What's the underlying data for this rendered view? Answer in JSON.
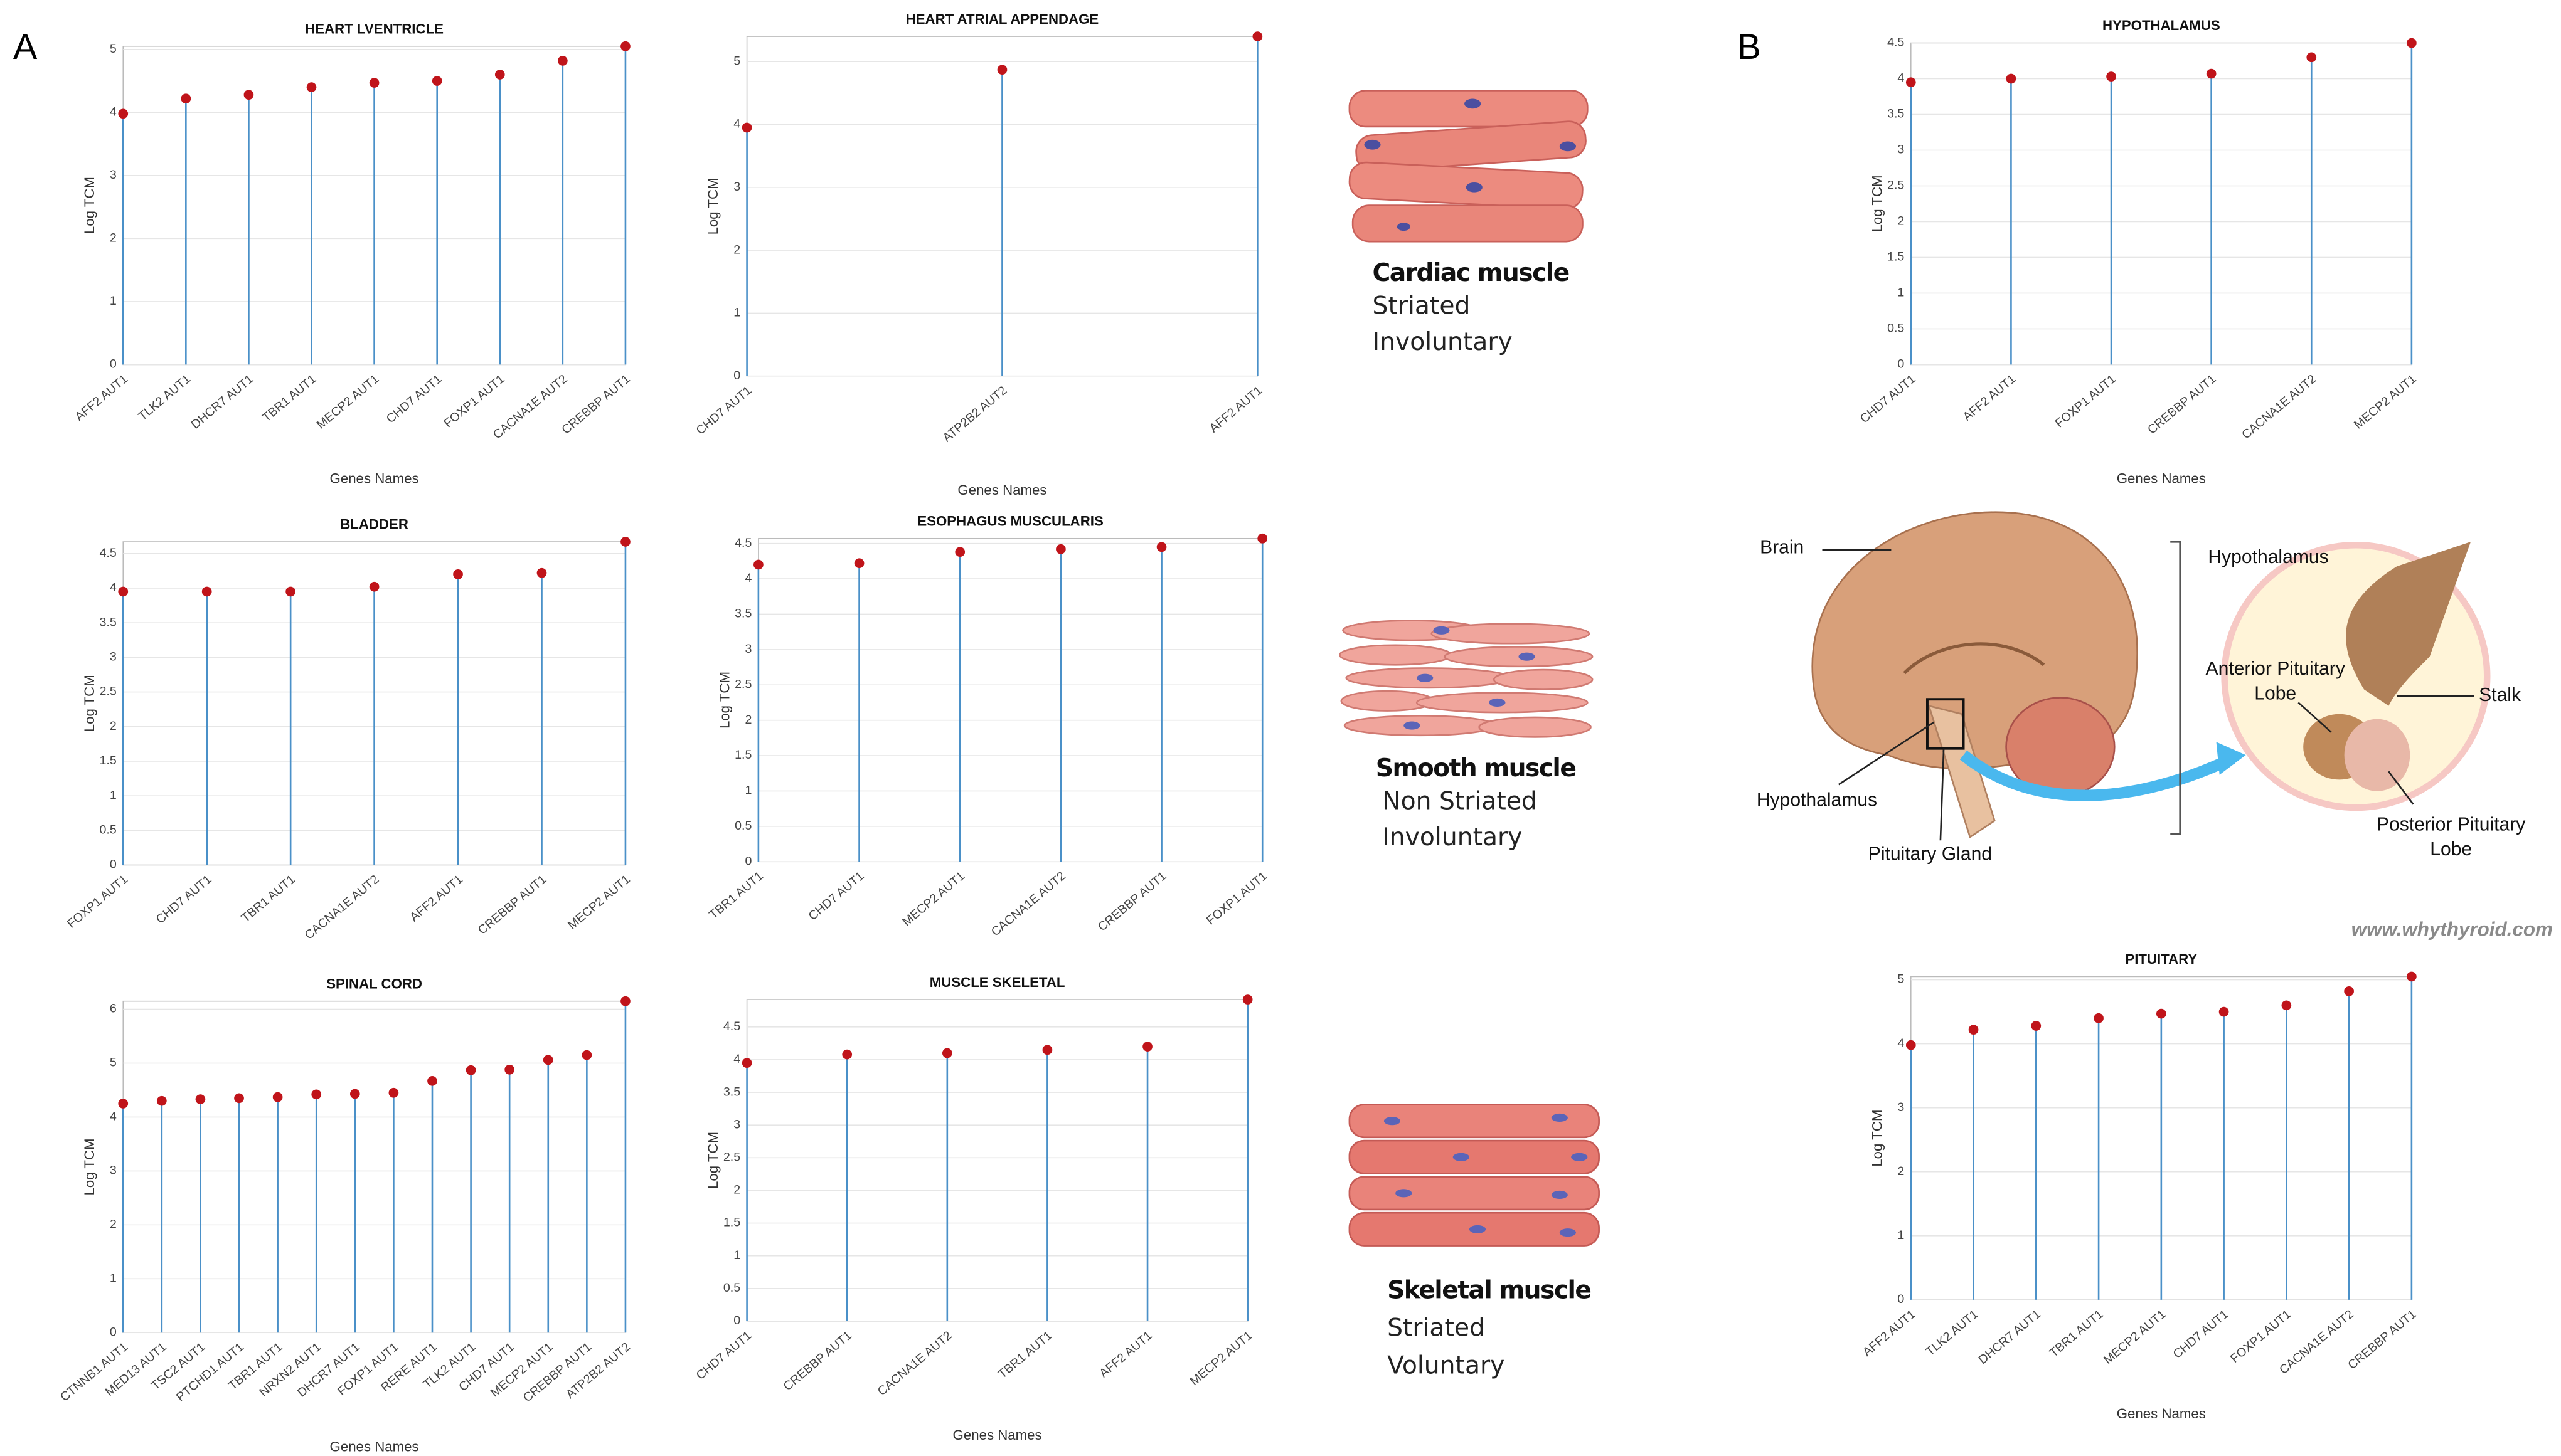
{
  "panel_labels": [
    "A",
    "B"
  ],
  "illustrations": [
    {
      "title": "Cardiac muscle",
      "lines": [
        "Striated",
        "Involuntary"
      ]
    },
    {
      "title": "Smooth muscle",
      "lines": [
        "Non Striated",
        "Involuntary"
      ]
    },
    {
      "title": "Skeletal muscle",
      "lines": [
        "Striated",
        "Voluntary"
      ]
    }
  ],
  "diagram": {
    "brain": "Brain",
    "hypothalamus_left": "Hypothalamus",
    "pituitary_gland": "Pituitary Gland",
    "hypothalamus_right": "Hypothalamus",
    "anterior": [
      "Anterior Pituitary",
      "Lobe"
    ],
    "stalk": "Stalk",
    "posterior": [
      "Posterior Pituitary",
      "Lobe"
    ],
    "credit": "www.whythyroid.com"
  },
  "chart_data": [
    {
      "type": "stem",
      "title": "HEART LVENTRICLE",
      "x_label": "Genes Names",
      "y_label": "Log TCM",
      "categories": [
        "AFF2 AUT1",
        "TLK2 AUT1",
        "DHCR7 AUT1",
        "TBR1 AUT1",
        "MECP2 AUT1",
        "CHD7 AUT1",
        "FOXP1 AUT1",
        "CACNA1E AUT2",
        "CREBBP AUT1"
      ],
      "values": [
        3.98,
        4.22,
        4.28,
        4.4,
        4.47,
        4.5,
        4.6,
        4.82,
        5.05
      ],
      "ylim": [
        0,
        5.05
      ],
      "yticks": [
        0,
        1,
        2,
        3,
        4,
        5
      ],
      "grid": true,
      "color": "#4a90c8",
      "marker_color": "#c0141a"
    },
    {
      "type": "stem",
      "title": "HEART ATRIAL APPENDAGE",
      "x_label": "Genes Names",
      "y_label": "Log TCM",
      "categories": [
        "CHD7 AUT1",
        "ATP2B2 AUT2",
        "AFF2 AUT1"
      ],
      "values": [
        3.95,
        4.87,
        5.4
      ],
      "ylim": [
        0,
        5.4
      ],
      "yticks": [
        0,
        1,
        2,
        3,
        4,
        5
      ],
      "grid": true,
      "color": "#4a90c8",
      "marker_color": "#c0141a"
    },
    {
      "type": "stem",
      "title": "HYPOTHALAMUS",
      "x_label": "Genes Names",
      "y_label": "Log TCM",
      "categories": [
        "CHD7 AUT1",
        "AFF2 AUT1",
        "FOXP1 AUT1",
        "CREBBP AUT1",
        "CACNA1E AUT2",
        "MECP2 AUT1"
      ],
      "values": [
        3.95,
        4.0,
        4.03,
        4.07,
        4.3,
        4.5
      ],
      "ylim": [
        0,
        4.5
      ],
      "yticks": [
        0,
        0.5,
        1,
        1.5,
        2,
        2.5,
        3,
        3.5,
        4,
        4.5
      ],
      "grid": true,
      "color": "#4a90c8",
      "marker_color": "#c0141a"
    },
    {
      "type": "stem",
      "title": "BLADDER",
      "x_label": null,
      "y_label": "Log TCM",
      "categories": [
        "FOXP1 AUT1",
        "CHD7 AUT1",
        "TBR1 AUT1",
        "CACNA1E AUT2",
        "AFF2 AUT1",
        "CREBBP AUT1",
        "MECP2 AUT1"
      ],
      "values": [
        3.95,
        3.95,
        3.95,
        4.02,
        4.2,
        4.22,
        4.67
      ],
      "ylim": [
        0,
        4.67
      ],
      "yticks": [
        0,
        0.5,
        1,
        1.5,
        2,
        2.5,
        3,
        3.5,
        4,
        4.5
      ],
      "grid": true,
      "color": "#4a90c8",
      "marker_color": "#c0141a"
    },
    {
      "type": "stem",
      "title": "ESOPHAGUS MUSCULARIS",
      "x_label": null,
      "y_label": "Log TCM",
      "categories": [
        "TBR1 AUT1",
        "CHD7 AUT1",
        "MECP2 AUT1",
        "CACNA1E AUT2",
        "CREBBP AUT1",
        "FOXP1 AUT1"
      ],
      "values": [
        4.2,
        4.22,
        4.38,
        4.42,
        4.45,
        4.57
      ],
      "ylim": [
        0,
        4.57
      ],
      "yticks": [
        0,
        0.5,
        1,
        1.5,
        2,
        2.5,
        3,
        3.5,
        4,
        4.5
      ],
      "grid": true,
      "color": "#4a90c8",
      "marker_color": "#c0141a"
    },
    {
      "type": "stem",
      "title": "SPINAL CORD",
      "x_label": "Genes Names",
      "y_label": "Log TCM",
      "categories": [
        "CTNNB1 AUT1",
        "MED13 AUT1",
        "TSC2 AUT1",
        "PTCHD1 AUT1",
        "TBR1 AUT1",
        "NRXN2 AUT1",
        "DHCR7 AUT1",
        "FOXP1 AUT1",
        "RERE AUT1",
        "TLK2 AUT1",
        "CHD7 AUT1",
        "MECP2 AUT1",
        "CREBBP AUT1",
        "ATP2B2 AUT2"
      ],
      "values": [
        4.25,
        4.3,
        4.33,
        4.35,
        4.37,
        4.42,
        4.43,
        4.45,
        4.67,
        4.87,
        4.88,
        5.06,
        5.15,
        6.15
      ],
      "ylim": [
        0,
        6.15
      ],
      "yticks": [
        0,
        1,
        2,
        3,
        4,
        5,
        6
      ],
      "grid": true,
      "color": "#4a90c8",
      "marker_color": "#c0141a"
    },
    {
      "type": "stem",
      "title": "MUSCLE SKELETAL",
      "x_label": "Genes Names",
      "y_label": "Log TCM",
      "categories": [
        "CHD7 AUT1",
        "CREBBP AUT1",
        "CACNA1E AUT2",
        "TBR1 AUT1",
        "AFF2 AUT1",
        "MECP2 AUT1"
      ],
      "values": [
        3.95,
        4.08,
        4.1,
        4.15,
        4.2,
        4.92
      ],
      "ylim": [
        0,
        4.92
      ],
      "yticks": [
        0,
        0.5,
        1,
        1.5,
        2,
        2.5,
        3,
        3.5,
        4,
        4.5
      ],
      "grid": true,
      "color": "#4a90c8",
      "marker_color": "#c0141a"
    },
    {
      "type": "stem",
      "title": "PITUITARY",
      "x_label": "Genes Names",
      "y_label": "Log TCM",
      "categories": [
        "AFF2 AUT1",
        "TLK2 AUT1",
        "DHCR7 AUT1",
        "TBR1 AUT1",
        "MECP2 AUT1",
        "CHD7 AUT1",
        "FOXP1 AUT1",
        "CACNA1E AUT2",
        "CREBBP AUT1"
      ],
      "values": [
        3.98,
        4.22,
        4.28,
        4.4,
        4.47,
        4.5,
        4.6,
        4.82,
        5.05
      ],
      "ylim": [
        0,
        5.05
      ],
      "yticks": [
        0,
        1,
        2,
        3,
        4,
        5
      ],
      "grid": true,
      "color": "#4a90c8",
      "marker_color": "#c0141a"
    }
  ]
}
